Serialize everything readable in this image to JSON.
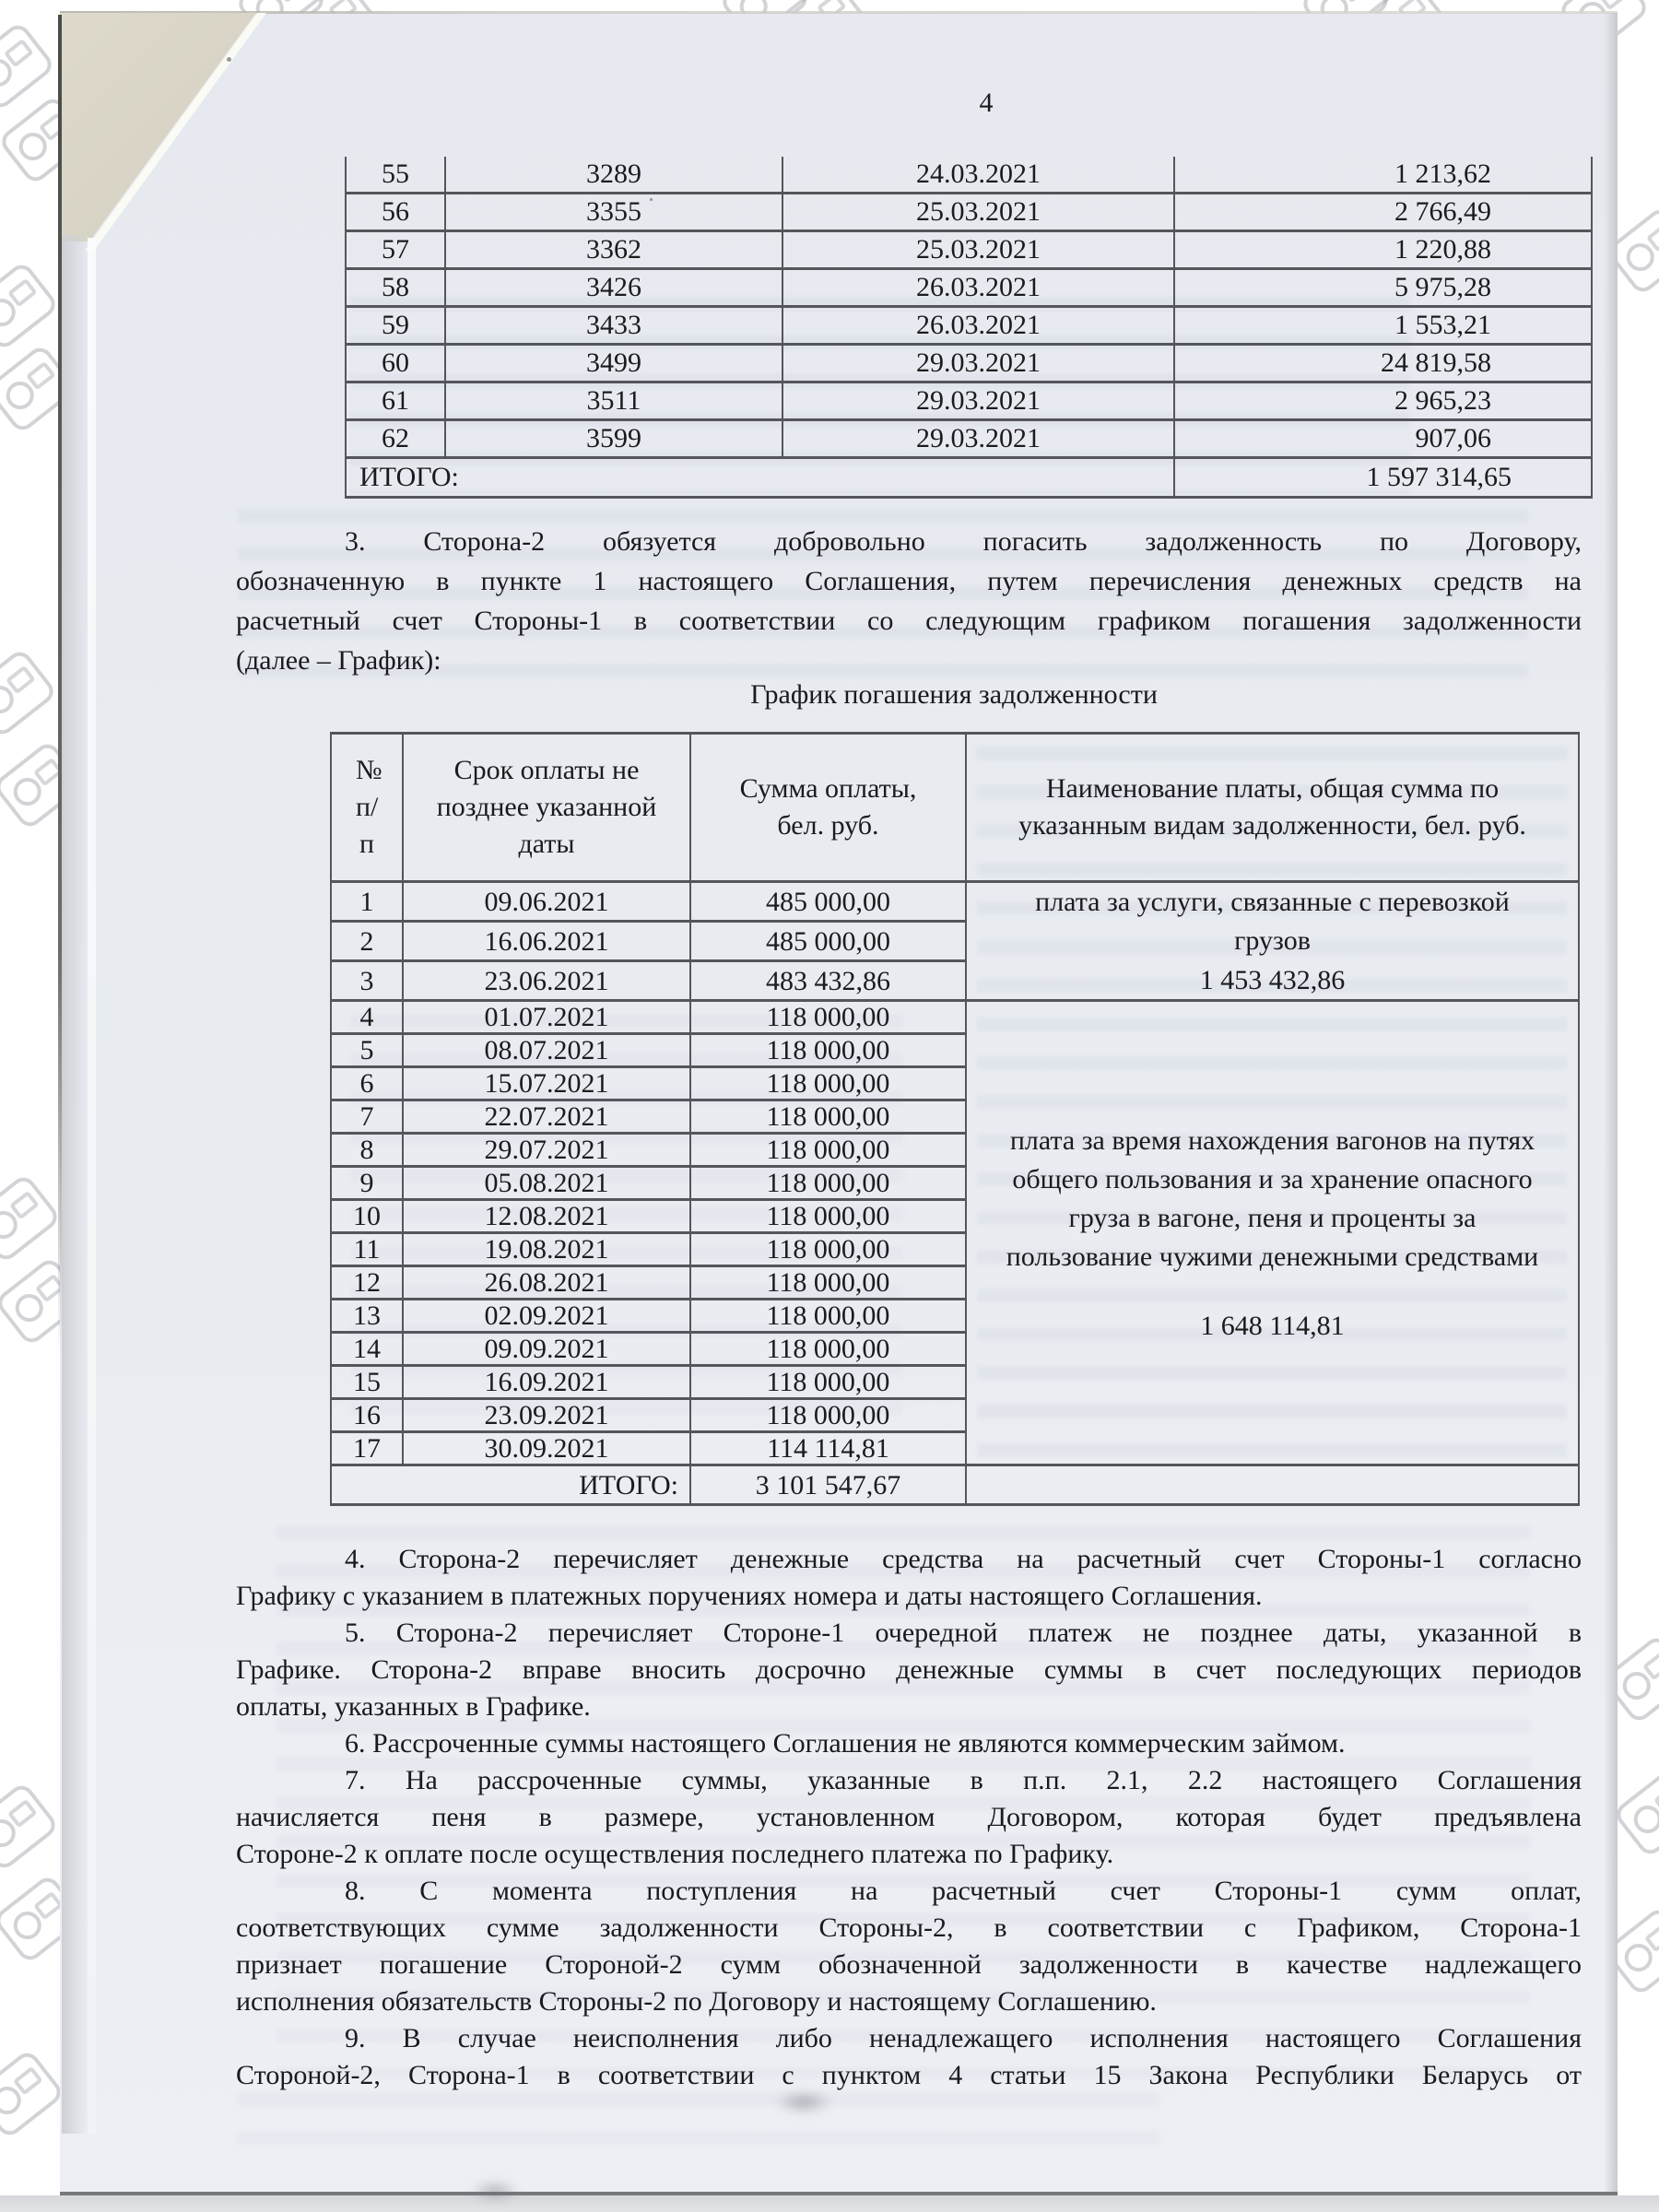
{
  "page_number": "4",
  "payments_table": {
    "rows": [
      [
        "55",
        "3289",
        "24.03.2021",
        "1 213,62"
      ],
      [
        "56",
        "3355",
        "25.03.2021",
        "2 766,49"
      ],
      [
        "57",
        "3362",
        "25.03.2021",
        "1 220,88"
      ],
      [
        "58",
        "3426",
        "26.03.2021",
        "5 975,28"
      ],
      [
        "59",
        "3433",
        "26.03.2021",
        "1 553,21"
      ],
      [
        "60",
        "3499",
        "29.03.2021",
        "24 819,58"
      ],
      [
        "61",
        "3511",
        "29.03.2021",
        "2 965,23"
      ],
      [
        "62",
        "3599",
        "29.03.2021",
        "907,06"
      ]
    ],
    "total_label": "ИТОГО:",
    "total_value": "1 597 314,65"
  },
  "intro_paragraphs": [
    {
      "lines": [
        {
          "text": "3. Сторона-2 обязуется добровольно погасить задолженность по Договору,",
          "stretch": true
        },
        {
          "text": "обозначенную в пункте 1 настоящего Соглашения, путем перечисления денежных средств на",
          "stretch": true
        },
        {
          "text": "расчетный счет Стороны-1 в соответствии со следующим графиком погашения задолженности",
          "stretch": true
        },
        {
          "text": "(далее – График):",
          "stretch": false
        }
      ]
    }
  ],
  "schedule": {
    "title": "График погашения задолженности",
    "headers": [
      "№ п/п",
      "Срок оплаты не позднее указанной даты",
      "Сумма оплаты, бел. руб.",
      "Наименование платы, общая сумма по указанным видам задолженности, бел. руб."
    ],
    "rows": [
      [
        "1",
        "09.06.2021",
        "485 000,00"
      ],
      [
        "2",
        "16.06.2021",
        "485 000,00"
      ],
      [
        "3",
        "23.06.2021",
        "483 432,86"
      ],
      [
        "4",
        "01.07.2021",
        "118 000,00"
      ],
      [
        "5",
        "08.07.2021",
        "118 000,00"
      ],
      [
        "6",
        "15.07.2021",
        "118 000,00"
      ],
      [
        "7",
        "22.07.2021",
        "118 000,00"
      ],
      [
        "8",
        "29.07.2021",
        "118 000,00"
      ],
      [
        "9",
        "05.08.2021",
        "118 000,00"
      ],
      [
        "10",
        "12.08.2021",
        "118 000,00"
      ],
      [
        "11",
        "19.08.2021",
        "118 000,00"
      ],
      [
        "12",
        "26.08.2021",
        "118 000,00"
      ],
      [
        "13",
        "02.09.2021",
        "118 000,00"
      ],
      [
        "14",
        "09.09.2021",
        "118 000,00"
      ],
      [
        "15",
        "16.09.2021",
        "118 000,00"
      ],
      [
        "16",
        "23.09.2021",
        "118 000,00"
      ],
      [
        "17",
        "30.09.2021",
        "114 114,81"
      ]
    ],
    "group1": {
      "text": "плата за услуги, связанные с перевозкой грузов",
      "amount": "1 453 432,86",
      "rowspan": 3
    },
    "group2": {
      "text": "плата за время нахождения вагонов на путях общего пользования и за хранение опасного груза в вагоне, пеня и проценты за пользование чужими денежными средствами",
      "amount": "1 648 114,81",
      "rowspan": 14
    },
    "total_label": "ИТОГО:",
    "total_value": "3 101 547,67"
  },
  "body_paragraphs": [
    {
      "lines": [
        {
          "text": "4. Сторона-2 перечисляет денежные средства на расчетный счет Стороны-1 согласно",
          "stretch": true
        },
        {
          "text": "Графику с указанием в платежных поручениях номера и даты настоящего Соглашения.",
          "stretch": false
        }
      ]
    },
    {
      "lines": [
        {
          "text": "5. Сторона-2 перечисляет Стороне-1 очередной платеж не позднее даты, указанной в",
          "stretch": true
        },
        {
          "text": "Графике. Сторона-2 вправе вносить досрочно денежные суммы в счет последующих периодов",
          "stretch": true
        },
        {
          "text": "оплаты, указанных в Графике.",
          "stretch": false
        }
      ]
    },
    {
      "lines": [
        {
          "text": "6. Рассроченные суммы настоящего Соглашения не являются коммерческим займом.",
          "stretch": false
        }
      ]
    },
    {
      "lines": [
        {
          "text": "7. На рассроченные суммы, указанные в п.п. 2.1, 2.2 настоящего Соглашения",
          "stretch": true
        },
        {
          "text": "начисляется пеня в размере, установленном Договором, которая будет предъявлена",
          "stretch": true
        },
        {
          "text": "Стороне-2 к оплате после осуществления последнего платежа по Графику.",
          "stretch": false
        }
      ]
    },
    {
      "lines": [
        {
          "text": "8. С момента поступления на расчетный счет Стороны-1 сумм оплат,",
          "stretch": true
        },
        {
          "text": "соответствующих сумме задолженности Стороны-2, в соответствии с Графиком, Сторона-1",
          "stretch": true
        },
        {
          "text": "признает погашение Стороной-2 сумм обозначенной задолженности в качестве надлежащего",
          "stretch": true
        },
        {
          "text": "исполнения обязательств Стороны-2 по Договору и настоящему Соглашению.",
          "stretch": false
        }
      ]
    },
    {
      "lines": [
        {
          "text": "9. В случае неисполнения либо ненадлежащего исполнения настоящего Соглашения",
          "stretch": true
        },
        {
          "text": "Стороной-2, Сторона-1 в соответствии с пунктом 4 статьи 15 Закона Республики Беларусь от",
          "stretch": true
        }
      ]
    }
  ]
}
